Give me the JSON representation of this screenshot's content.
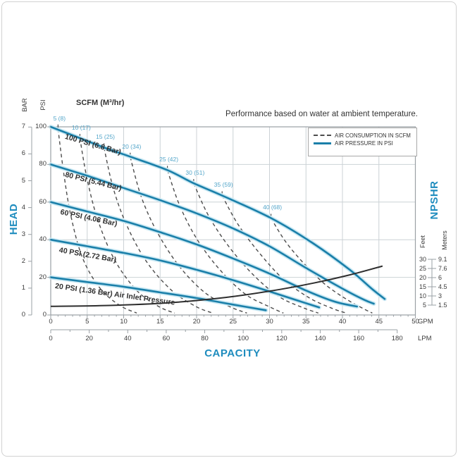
{
  "title": "Performance based on water at ambient temperature.",
  "scfm_header": "SCFM (M³/hr)",
  "legend": {
    "items": [
      {
        "label": "AIR CONSUMPTION IN SCFM",
        "style": "dashed"
      },
      {
        "label": "AIR PRESSURE IN PSI",
        "style": "solid"
      }
    ]
  },
  "axes": {
    "left": {
      "title": "HEAD",
      "bar_unit": "BAR",
      "psi_unit": "PSI",
      "bar_ticks": [
        0,
        1,
        2,
        3,
        4,
        5,
        6,
        7
      ],
      "psi_ticks": [
        0,
        20,
        40,
        60,
        80,
        100
      ]
    },
    "bottom": {
      "title": "CAPACITY",
      "gpm_unit": "GPM",
      "lpm_unit": "LPM",
      "gpm_ticks": [
        0,
        5,
        10,
        15,
        20,
        25,
        30,
        35,
        40,
        45,
        50
      ],
      "lpm_ticks": [
        0,
        20,
        40,
        60,
        80,
        100,
        120,
        140,
        160,
        180
      ]
    },
    "right": {
      "title": "NPSHR",
      "feet_unit": "Feet",
      "meters_unit": "Meters",
      "feet_ticks": [
        "30",
        "25",
        "20",
        "15",
        "10",
        "5"
      ],
      "meters_ticks": [
        "9.1",
        "7.6",
        "6",
        "4.5",
        "3",
        "1.5"
      ]
    }
  },
  "chart_data": {
    "type": "line",
    "title": "Performance based on water at ambient temperature.",
    "xlabel": "CAPACITY",
    "x_axis": {
      "gpm_range": [
        0,
        50
      ],
      "lpm_range": [
        0,
        180
      ],
      "grid_step_gpm": 5
    },
    "y_left_axis": {
      "label": "HEAD",
      "psi_range": [
        0,
        100
      ],
      "bar_range": [
        0,
        7
      ],
      "grid_step_psi": 20
    },
    "y_right_axis": {
      "label": "NPSHR",
      "feet_ticks": [
        30,
        25,
        20,
        15,
        10,
        5
      ],
      "meters_ticks": [
        9.1,
        7.6,
        6,
        4.5,
        3,
        1.5
      ]
    },
    "grid": true,
    "legend_position": "top-right",
    "pressure_curves": [
      {
        "label": "100 PSI (6.8 Bar)",
        "points_gpm_psi": [
          [
            0,
            100
          ],
          [
            4,
            94
          ],
          [
            7.3,
            89
          ],
          [
            11,
            84
          ],
          [
            16,
            77
          ],
          [
            19.6,
            70
          ],
          [
            23.5,
            63.5
          ],
          [
            30.2,
            51.5
          ],
          [
            36,
            38
          ],
          [
            41,
            24
          ],
          [
            44,
            14
          ],
          [
            45.8,
            8.5
          ]
        ]
      },
      {
        "label": "80 PSI (5.44 Bar)",
        "points_gpm_psi": [
          [
            0,
            80
          ],
          [
            5,
            74
          ],
          [
            10,
            67.5
          ],
          [
            15,
            61
          ],
          [
            20,
            54
          ],
          [
            25,
            46
          ],
          [
            30,
            36.5
          ],
          [
            35,
            25
          ],
          [
            40,
            14
          ],
          [
            43,
            8
          ],
          [
            44.3,
            6
          ]
        ]
      },
      {
        "label": "60 PSI (4.08 Bar)",
        "points_gpm_psi": [
          [
            0,
            60
          ],
          [
            5,
            55
          ],
          [
            10,
            50
          ],
          [
            15,
            44
          ],
          [
            20,
            37.5
          ],
          [
            25,
            30
          ],
          [
            30,
            22
          ],
          [
            35,
            13
          ],
          [
            39,
            7
          ],
          [
            42,
            4.5
          ]
        ]
      },
      {
        "label": "40 PSI (2.72 Bar)",
        "points_gpm_psi": [
          [
            0,
            40
          ],
          [
            5,
            36.5
          ],
          [
            10,
            33
          ],
          [
            15,
            29
          ],
          [
            20,
            24
          ],
          [
            25,
            18.5
          ],
          [
            30,
            12.5
          ],
          [
            34,
            7.5
          ],
          [
            36.8,
            4
          ]
        ]
      },
      {
        "label": "20 PSI (1.36 Bar) Air Inlet Pressure",
        "points_gpm_psi": [
          [
            0,
            20
          ],
          [
            5,
            17.5
          ],
          [
            10,
            15
          ],
          [
            15,
            12
          ],
          [
            20,
            9
          ],
          [
            25,
            5.5
          ],
          [
            29.5,
            2.5
          ]
        ]
      }
    ],
    "air_consumption_curves": [
      {
        "label": "5 (8)",
        "points_gpm_psi": [
          [
            1.0,
            99
          ],
          [
            1.8,
            75
          ],
          [
            2.8,
            52
          ],
          [
            4.4,
            30
          ],
          [
            6.8,
            14
          ],
          [
            9.5,
            5
          ],
          [
            11.8,
            1
          ]
        ]
      },
      {
        "label": "10 (17)",
        "points_gpm_psi": [
          [
            4.0,
            94
          ],
          [
            5.0,
            72
          ],
          [
            6.5,
            50
          ],
          [
            8.8,
            29
          ],
          [
            11.8,
            13
          ],
          [
            14.8,
            4.5
          ],
          [
            17,
            1
          ]
        ]
      },
      {
        "label": "15 (25)",
        "points_gpm_psi": [
          [
            7.3,
            89
          ],
          [
            8.6,
            67
          ],
          [
            10.5,
            47
          ],
          [
            13.2,
            28
          ],
          [
            16.6,
            13
          ],
          [
            19.9,
            4.5
          ],
          [
            22.2,
            1
          ]
        ]
      },
      {
        "label": "20 (34)",
        "points_gpm_psi": [
          [
            10.9,
            84
          ],
          [
            12.4,
            63
          ],
          [
            14.6,
            44
          ],
          [
            17.6,
            26
          ],
          [
            21.1,
            12
          ],
          [
            24.5,
            4.5
          ],
          [
            26.9,
            1
          ]
        ]
      },
      {
        "label": "25 (42)",
        "points_gpm_psi": [
          [
            16.0,
            77
          ],
          [
            17.7,
            58
          ],
          [
            20.1,
            40
          ],
          [
            23.2,
            24
          ],
          [
            26.7,
            11
          ],
          [
            29.9,
            4.5
          ],
          [
            31.9,
            1
          ]
        ]
      },
      {
        "label": "30 (51)",
        "points_gpm_psi": [
          [
            19.6,
            70
          ],
          [
            21.6,
            53
          ],
          [
            24.3,
            37
          ],
          [
            27.6,
            22
          ],
          [
            31.2,
            10
          ],
          [
            34.5,
            4
          ],
          [
            36.7,
            1
          ]
        ]
      },
      {
        "label": "35 (59)",
        "points_gpm_psi": [
          [
            23.5,
            63.5
          ],
          [
            25.7,
            48
          ],
          [
            28.6,
            33
          ],
          [
            31.9,
            19
          ],
          [
            35.5,
            9
          ],
          [
            38.6,
            3.5
          ],
          [
            40.5,
            1
          ]
        ]
      },
      {
        "label": "40 (68)",
        "points_gpm_psi": [
          [
            30.2,
            51.5
          ],
          [
            32.2,
            39
          ],
          [
            34.8,
            27
          ],
          [
            37.7,
            16
          ],
          [
            40.7,
            8
          ],
          [
            42.8,
            3.5
          ],
          [
            44.1,
            1
          ]
        ]
      }
    ],
    "npshr_curve": {
      "points_gpm_feet": [
        [
          0,
          4.3
        ],
        [
          8,
          4.8
        ],
        [
          16,
          6.2
        ],
        [
          24,
          9.2
        ],
        [
          30,
          12.6
        ],
        [
          36,
          17
        ],
        [
          41,
          21.5
        ],
        [
          45.5,
          26.3
        ]
      ]
    },
    "colors": {
      "pressure": "#1a7fa9",
      "pressure_halo": "#c9e8f3",
      "consumption": "#4d4d4d",
      "npshr": "#2e2e2e",
      "grid": "#ccd2d6",
      "border": "#9aa0a5",
      "blue_text": "#1e8cbe",
      "scfm_label": "#54a6ca",
      "text": "#3c3c3c"
    }
  }
}
